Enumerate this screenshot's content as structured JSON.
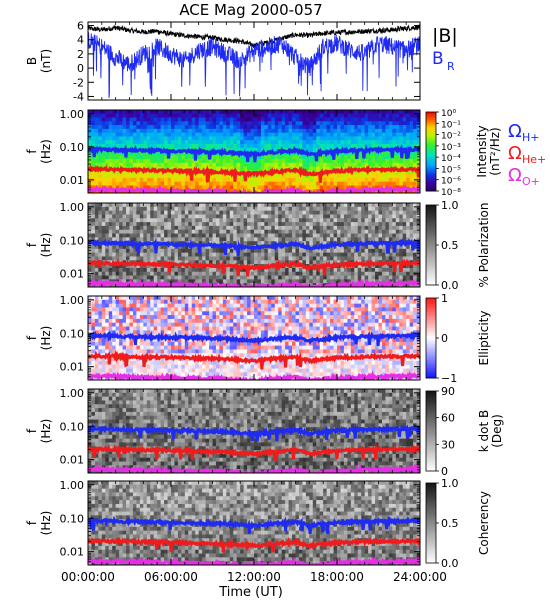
{
  "chart_data": {
    "type": "multi-panel",
    "title": "ACE Mag 2000-057",
    "xlabel": "Time (UT)",
    "x_ticks": [
      "00:00:00",
      "06:00:00",
      "12:00:00",
      "18:00:00",
      "24:00:00"
    ],
    "xlim_hours": [
      0,
      24
    ],
    "panels": [
      {
        "id": "b",
        "type": "line",
        "ylabel": "B",
        "yunit": "(nT)",
        "ylim": [
          -4.5,
          6.5
        ],
        "y_ticks": [
          "6",
          "4",
          "2",
          "0",
          "-2",
          "-4"
        ],
        "y_tick_values": [
          6,
          4,
          2,
          0,
          -2,
          -4
        ],
        "series": [
          {
            "name": "|B|",
            "color": "#000000",
            "x": [
              0,
              1,
              2,
              3,
              4,
              5,
              6,
              7,
              8,
              9,
              10,
              11,
              12,
              13,
              14,
              15,
              16,
              17,
              18,
              19,
              20,
              21,
              22,
              23,
              24
            ],
            "y": [
              5.6,
              5.4,
              5.7,
              5.3,
              5.1,
              5.2,
              4.8,
              4.6,
              4.4,
              4.3,
              4.0,
              3.8,
              3.2,
              3.6,
              4.2,
              4.7,
              4.6,
              4.9,
              5.0,
              5.1,
              5.2,
              5.3,
              5.4,
              5.6,
              5.8
            ]
          },
          {
            "name": "B_R",
            "color": "#1f2bf0",
            "x": [
              0,
              1,
              2,
              3,
              4,
              5,
              6,
              7,
              8,
              9,
              10,
              11,
              12,
              13,
              14,
              15,
              16,
              17,
              18,
              19,
              20,
              21,
              22,
              23,
              24
            ],
            "y": [
              4.0,
              3.0,
              1.5,
              0.5,
              2.0,
              3.0,
              2.0,
              1.0,
              2.5,
              3.0,
              2.0,
              1.0,
              2.5,
              3.0,
              3.5,
              1.5,
              0.0,
              3.0,
              3.5,
              2.5,
              2.0,
              3.5,
              3.0,
              2.5,
              3.5
            ]
          }
        ]
      },
      {
        "id": "intensity",
        "type": "heatmap",
        "ylabel": "f",
        "yunit": "(Hz)",
        "ylim": [
          0.004,
          1.3
        ],
        "y_ticks": [
          "1.00",
          "0.10",
          "0.01"
        ],
        "y_tick_values": [
          1.0,
          0.1,
          0.01
        ],
        "y_scale": "log",
        "colorbar": {
          "label": "Intensity",
          "unit": "(nT²/Hz)",
          "tick_labels": [
            "10⁰",
            "10⁻¹",
            "10⁻²",
            "10⁻³",
            "10⁻⁴",
            "10⁻⁵",
            "10⁻⁶",
            "10⁻⁸"
          ],
          "colormap": "rainbow"
        }
      },
      {
        "id": "polarization",
        "type": "heatmap",
        "ylabel": "f",
        "yunit": "(Hz)",
        "ylim": [
          0.004,
          1.3
        ],
        "y_ticks": [
          "1.00",
          "0.10",
          "0.01"
        ],
        "y_tick_values": [
          1.0,
          0.1,
          0.01
        ],
        "y_scale": "log",
        "colorbar": {
          "label": "% Polarization",
          "unit": "",
          "tick_labels": [
            "1.0",
            "0.5",
            "0.0"
          ],
          "colormap": "gray"
        }
      },
      {
        "id": "ellipticity",
        "type": "heatmap",
        "ylabel": "f",
        "yunit": "(Hz)",
        "ylim": [
          0.004,
          1.3
        ],
        "y_ticks": [
          "1.00",
          "0.10",
          "0.01"
        ],
        "y_tick_values": [
          1.0,
          0.1,
          0.01
        ],
        "y_scale": "log",
        "colorbar": {
          "label": "Ellipticity",
          "unit": "",
          "tick_labels": [
            "1",
            "0",
            "−1"
          ],
          "colormap": "blue-white-red"
        }
      },
      {
        "id": "kdotb",
        "type": "heatmap",
        "ylabel": "f",
        "yunit": "(Hz)",
        "ylim": [
          0.004,
          1.3
        ],
        "y_ticks": [
          "1.00",
          "0.10",
          "0.01"
        ],
        "y_tick_values": [
          1.0,
          0.1,
          0.01
        ],
        "y_scale": "log",
        "colorbar": {
          "label": "k dot B",
          "unit": "(Deg)",
          "tick_labels": [
            "90",
            "60",
            "30",
            "0"
          ],
          "colormap": "gray"
        }
      },
      {
        "id": "coherency",
        "type": "heatmap",
        "ylabel": "f",
        "yunit": "(Hz)",
        "ylim": [
          0.004,
          1.3
        ],
        "y_ticks": [
          "1.00",
          "0.10",
          "0.01"
        ],
        "y_tick_values": [
          1.0,
          0.1,
          0.01
        ],
        "y_scale": "log",
        "colorbar": {
          "label": "Coherency",
          "unit": "",
          "tick_labels": [
            "1.0",
            "0.5",
            "0.0"
          ],
          "colormap": "gray"
        }
      }
    ],
    "gyrofrequencies": [
      {
        "name": "ΩH+",
        "symbol": "Ω",
        "sub": "H+",
        "color": "#1f2bf0",
        "x": [
          0,
          2,
          4,
          6,
          8,
          10,
          11,
          12,
          14,
          15,
          16,
          18,
          20,
          22,
          24
        ],
        "y": [
          0.085,
          0.082,
          0.078,
          0.075,
          0.072,
          0.068,
          0.064,
          0.06,
          0.072,
          0.078,
          0.06,
          0.074,
          0.08,
          0.082,
          0.085
        ]
      },
      {
        "name": "ΩHe+",
        "symbol": "Ω",
        "sub": "He+",
        "color": "#ee1c1c",
        "x": [
          0,
          2,
          4,
          6,
          8,
          10,
          11,
          12,
          14,
          15,
          16,
          18,
          20,
          22,
          24
        ],
        "y": [
          0.021,
          0.0205,
          0.0195,
          0.019,
          0.018,
          0.017,
          0.016,
          0.015,
          0.018,
          0.0195,
          0.015,
          0.0185,
          0.02,
          0.0205,
          0.021
        ]
      },
      {
        "name": "ΩO+",
        "symbol": "Ω",
        "sub": "O+",
        "color": "#e62ee6",
        "x": [
          0,
          2,
          4,
          6,
          8,
          10,
          11,
          12,
          14,
          15,
          16,
          18,
          20,
          22,
          24
        ],
        "y": [
          0.0053,
          0.0051,
          0.0049,
          0.0047,
          0.0045,
          0.0043,
          0.004,
          0.0038,
          0.0045,
          0.0049,
          0.0038,
          0.0046,
          0.005,
          0.0051,
          0.0053
        ]
      }
    ],
    "legend_b": [
      {
        "label": "|B|",
        "color": "#000000"
      },
      {
        "label": "B",
        "sub": "R",
        "color": "#1f2bf0"
      }
    ],
    "legend_placement": "right"
  }
}
